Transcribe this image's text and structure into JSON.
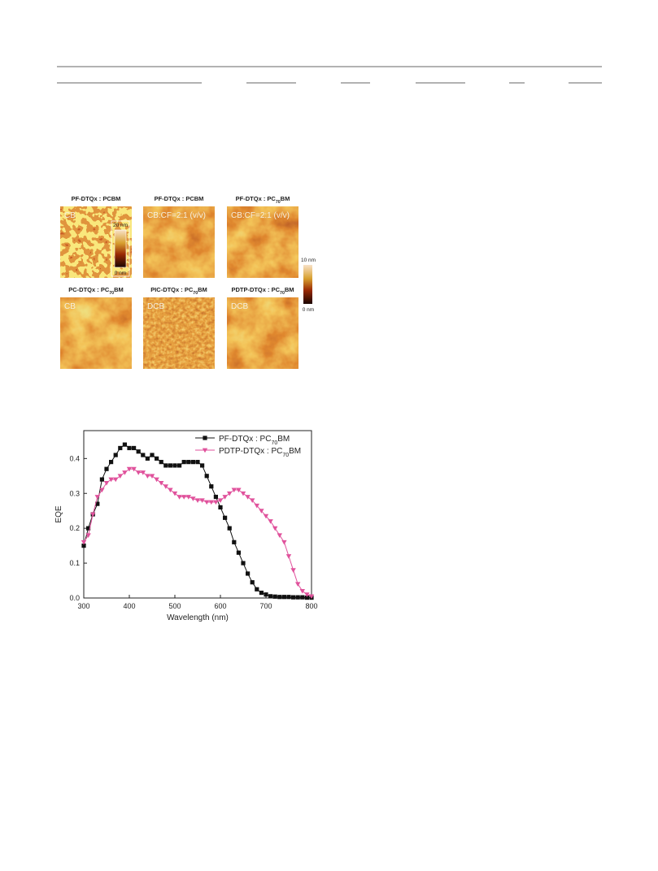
{
  "afm_figure": {
    "panels": [
      {
        "title": "PF-DTQx : PCBM",
        "label": "CB"
      },
      {
        "title": "PF-DTQx : PCBM",
        "label": "CB:CF=2:1 (v/v)"
      },
      {
        "title": "PF-DTQx : PC70BM",
        "label": "CB:CF=2:1 (v/v)"
      },
      {
        "title": "PC-DTQx : PC70BM",
        "label": "CB"
      },
      {
        "title": "PIC-DTQx : PC70BM",
        "label": "DCB"
      },
      {
        "title": "PDTP-DTQx : PC70BM",
        "label": "DCB"
      }
    ],
    "inset_scale": {
      "top": "20 nm",
      "bottom": "0 nm"
    },
    "side_scale": {
      "top": "10 nm",
      "bottom": "0 nm"
    }
  },
  "chart_data": {
    "type": "line",
    "xlabel": "Wavelength (nm)",
    "ylabel": "EQE",
    "x": [
      300,
      310,
      320,
      330,
      340,
      350,
      360,
      370,
      380,
      390,
      400,
      410,
      420,
      430,
      440,
      450,
      460,
      470,
      480,
      490,
      500,
      510,
      520,
      530,
      540,
      550,
      560,
      570,
      580,
      590,
      600,
      610,
      620,
      630,
      640,
      650,
      660,
      670,
      680,
      690,
      700,
      710,
      720,
      730,
      740,
      750,
      760,
      770,
      780,
      790,
      800
    ],
    "series": [
      {
        "name": "PF-DTQx : PC70BM",
        "color": "#111111",
        "marker": "square",
        "values": [
          0.15,
          0.2,
          0.24,
          0.27,
          0.34,
          0.37,
          0.39,
          0.41,
          0.43,
          0.44,
          0.43,
          0.43,
          0.42,
          0.41,
          0.4,
          0.41,
          0.4,
          0.39,
          0.38,
          0.38,
          0.38,
          0.38,
          0.39,
          0.39,
          0.39,
          0.39,
          0.38,
          0.35,
          0.32,
          0.29,
          0.26,
          0.23,
          0.2,
          0.16,
          0.13,
          0.1,
          0.07,
          0.045,
          0.025,
          0.015,
          0.01,
          0.005,
          0.004,
          0.003,
          0.003,
          0.003,
          0.002,
          0.002,
          0.002,
          0.001,
          0.001
        ]
      },
      {
        "name": "PDTP-DTQx : PC70BM",
        "color": "#e0529c",
        "marker": "triangle-down",
        "values": [
          0.16,
          0.18,
          0.24,
          0.29,
          0.31,
          0.33,
          0.34,
          0.34,
          0.35,
          0.36,
          0.37,
          0.37,
          0.36,
          0.36,
          0.35,
          0.35,
          0.34,
          0.33,
          0.32,
          0.31,
          0.3,
          0.29,
          0.29,
          0.29,
          0.285,
          0.28,
          0.28,
          0.275,
          0.275,
          0.275,
          0.28,
          0.29,
          0.3,
          0.31,
          0.31,
          0.3,
          0.29,
          0.28,
          0.265,
          0.25,
          0.235,
          0.22,
          0.2,
          0.18,
          0.16,
          0.12,
          0.08,
          0.04,
          0.02,
          0.01,
          0.005
        ]
      }
    ],
    "xlim": [
      300,
      800
    ],
    "xticks": [
      300,
      400,
      500,
      600,
      700,
      800
    ],
    "ylim": [
      0,
      0.48
    ],
    "yticks": [
      {
        "value": 0,
        "label": "0.0"
      },
      0.1,
      0.2,
      0.3,
      0.4
    ],
    "legend": "upper right"
  }
}
